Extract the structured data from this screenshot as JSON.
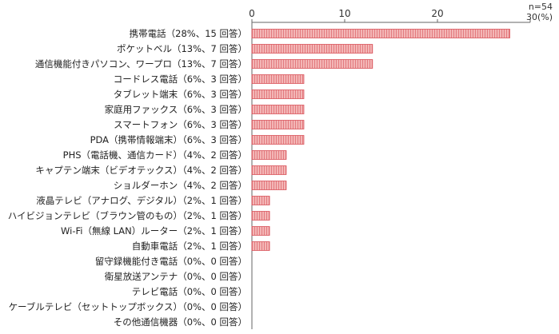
{
  "note": {
    "n_label": "n=54",
    "unit_label": "30(%)"
  },
  "colors": {
    "bar_fill": "#f3b6b6",
    "bar_stroke": "#d9535a",
    "axis": "#666666"
  },
  "chart_data": {
    "type": "bar",
    "orientation": "horizontal",
    "xlim": [
      0,
      30
    ],
    "xticks": [
      "0",
      "10",
      "20"
    ],
    "grid": false,
    "categories": [
      "携帯電話（28%、15 回答）",
      "ポケットベル（13%、7 回答）",
      "通信機能付きパソコン、ワープロ（13%、7 回答）",
      "コードレス電話（6%、3 回答）",
      "タブレット端末（6%、3 回答）",
      "家庭用ファックス（6%、3 回答）",
      "スマートフォン（6%、3 回答）",
      "PDA（携帯情報端末）（6%、3 回答）",
      "PHS（電話機、通信カード）（4%、2 回答）",
      "キャプテン端末（ビデオテックス）（4%、2 回答）",
      "ショルダーホン（4%、2 回答）",
      "液晶テレビ（アナログ、デジタル）（2%、1 回答）",
      "ハイビジョンテレビ（ブラウン管のもの）（2%、1 回答）",
      "Wi-Fi（無線 LAN）ルーター（2%、1 回答）",
      "自動車電話（2%、1 回答）",
      "留守録機能付き電話（0%、0 回答）",
      "衛星放送アンテナ（0%、0 回答）",
      "テレビ電話（0%、0 回答）",
      "ケーブルテレビ（セットトップボックス）（0%、0 回答）",
      "その他通信機器（0%、0 回答）"
    ],
    "values": [
      27.8,
      13.0,
      13.0,
      5.6,
      5.6,
      5.6,
      5.6,
      5.6,
      3.7,
      3.7,
      3.7,
      1.9,
      1.9,
      1.9,
      1.9,
      0,
      0,
      0,
      0,
      0
    ]
  }
}
